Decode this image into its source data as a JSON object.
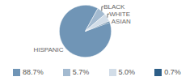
{
  "chart_data": {
    "type": "pie",
    "categories": [
      "HISPANIC",
      "BLACK",
      "WHITE",
      "ASIAN"
    ],
    "values": [
      88.7,
      5.7,
      5.0,
      0.7
    ],
    "value_labels": [
      "88.7%",
      "5.7%",
      "5.0%",
      "0.7%"
    ],
    "colors": [
      "#7095b6",
      "#a3bad0",
      "#d2dde8",
      "#2d5e87"
    ],
    "legend": "bottom"
  }
}
